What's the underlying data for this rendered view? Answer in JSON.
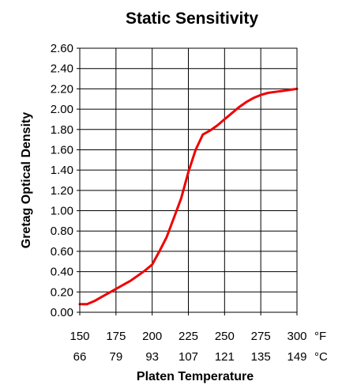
{
  "chart_data": {
    "type": "line",
    "title": "Static Sensitivity",
    "xlabel": "Platen Temperature",
    "ylabel": "Gretag Optical Density",
    "x_unit_f": "°F",
    "x_unit_c": "°C",
    "x_ticks_f": [
      "150",
      "175",
      "200",
      "225",
      "250",
      "275",
      "300"
    ],
    "x_ticks_c": [
      "66",
      "79",
      "93",
      "107",
      "121",
      "135",
      "149"
    ],
    "xlim": [
      150,
      300
    ],
    "ylim": [
      0,
      2.6
    ],
    "y_ticks": [
      "0.00",
      "0.20",
      "0.40",
      "0.60",
      "0.80",
      "1.00",
      "1.20",
      "1.40",
      "1.60",
      "1.80",
      "2.00",
      "2.20",
      "2.40",
      "2.60"
    ],
    "grid": true,
    "series": [
      {
        "color": "#ee0000",
        "x": [
          150,
          155,
          160,
          165,
          170,
          175,
          180,
          185,
          190,
          195,
          200,
          205,
          210,
          215,
          220,
          225,
          230,
          235,
          240,
          245,
          250,
          255,
          260,
          265,
          270,
          275,
          280,
          285,
          290,
          295,
          300
        ],
        "y": [
          0.08,
          0.08,
          0.11,
          0.15,
          0.19,
          0.23,
          0.27,
          0.31,
          0.36,
          0.41,
          0.47,
          0.6,
          0.74,
          0.93,
          1.12,
          1.38,
          1.6,
          1.75,
          1.79,
          1.84,
          1.9,
          1.96,
          2.02,
          2.07,
          2.11,
          2.14,
          2.16,
          2.17,
          2.18,
          2.19,
          2.2
        ]
      }
    ]
  }
}
